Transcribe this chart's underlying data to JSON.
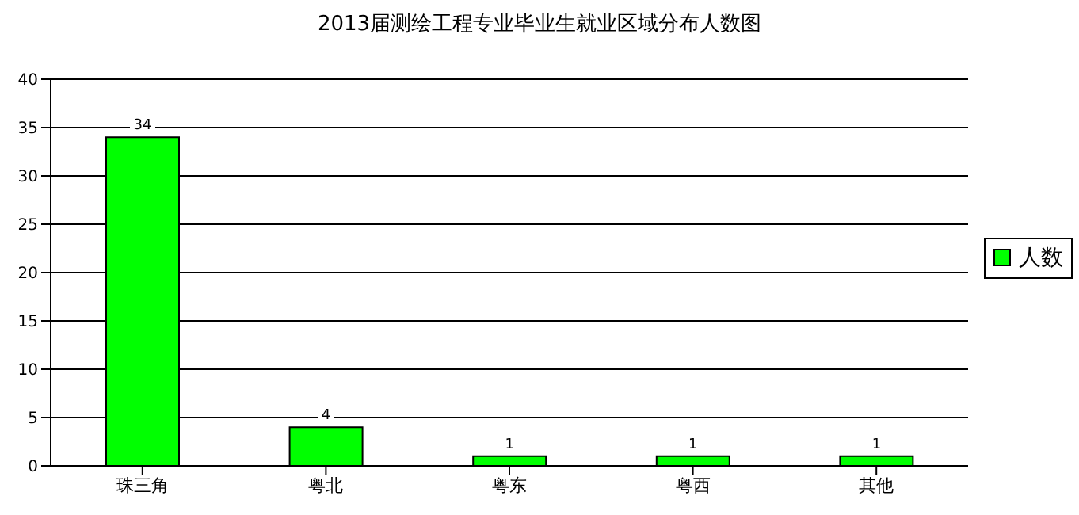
{
  "chart_data": {
    "type": "bar",
    "title": "2013届测绘工程专业毕业生就业区域分布人数图",
    "categories": [
      "珠三角",
      "粤北",
      "粤东",
      "粤西",
      "其他"
    ],
    "series": [
      {
        "name": "人数",
        "color": "#00ff00",
        "values": [
          34,
          4,
          1,
          1,
          1
        ]
      }
    ],
    "ylim": [
      0,
      40
    ],
    "yticks": [
      0,
      5,
      10,
      15,
      20,
      25,
      30,
      35,
      40
    ],
    "grid": "y",
    "legend": "right",
    "data_labels": true
  }
}
